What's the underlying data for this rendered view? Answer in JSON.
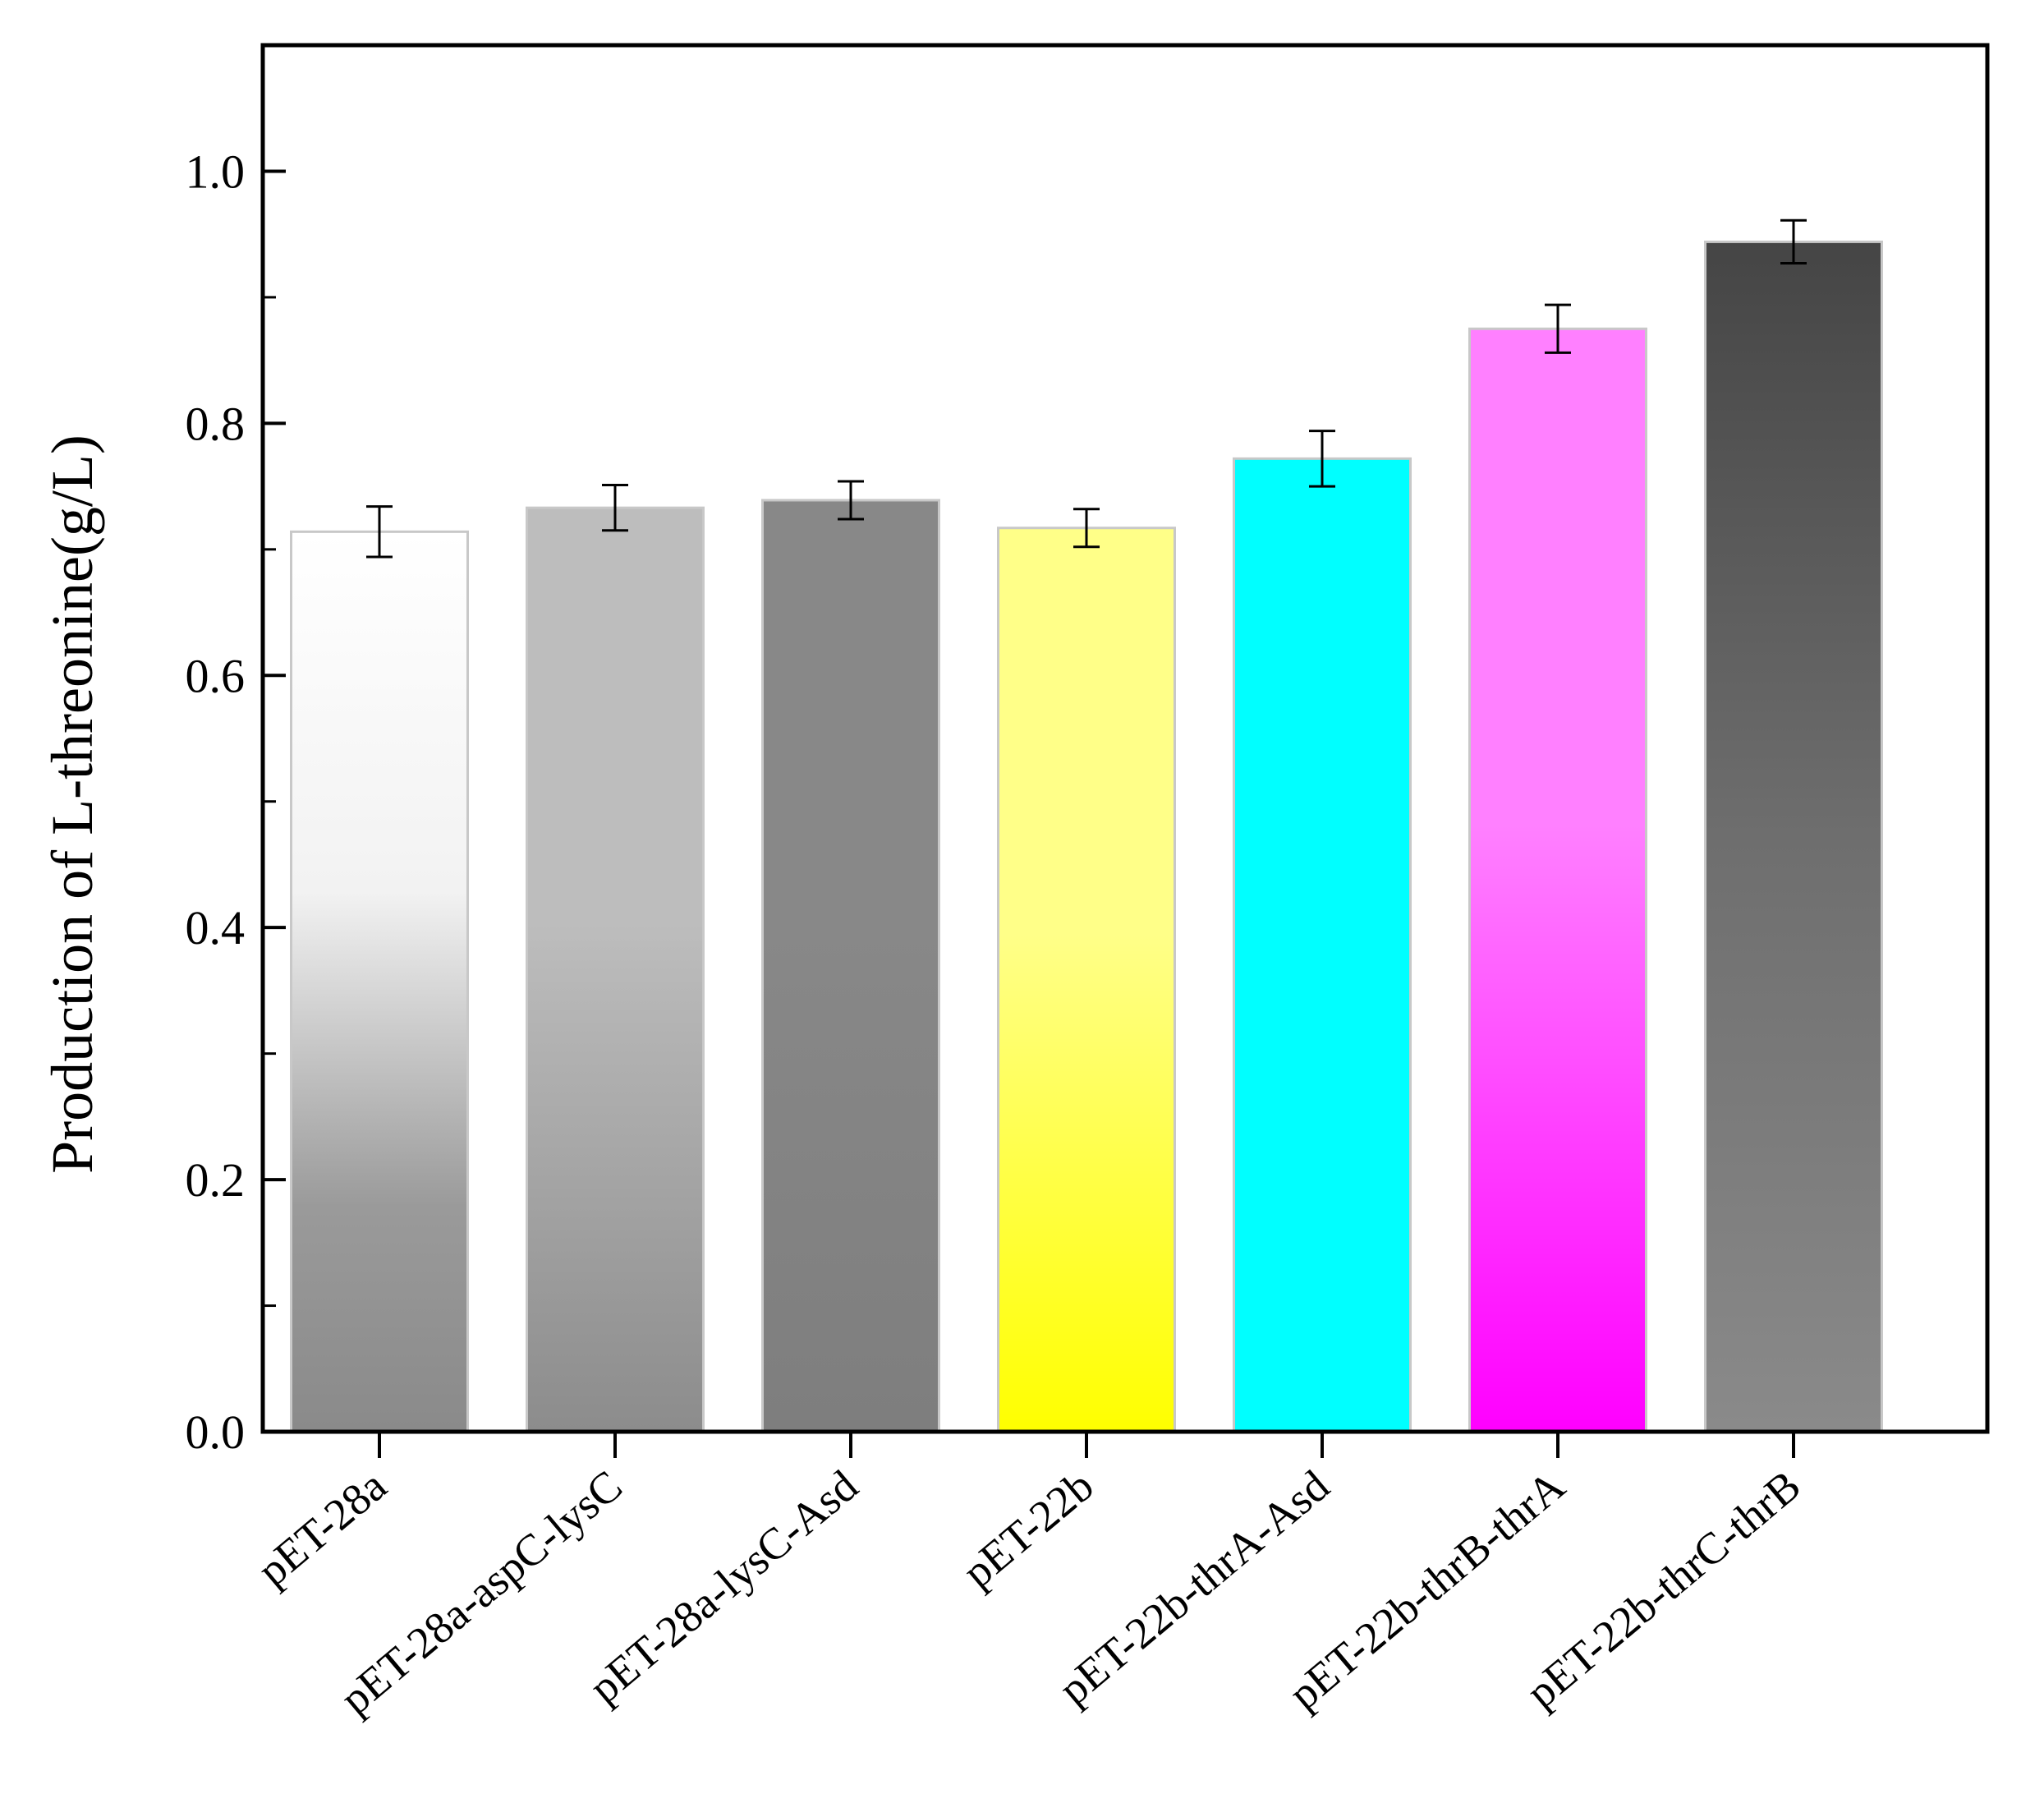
{
  "chart_data": {
    "type": "bar",
    "categories": [
      "pET-28a",
      "pET-28a-aspC-lysC",
      "pET-28a-lysC-Asd",
      "pET-22b",
      "pET-22b-thrA-Asd",
      "pET-22b-thrB-thrA",
      "pET-22b-thrC-thrB"
    ],
    "values": [
      0.714,
      0.733,
      0.739,
      0.717,
      0.772,
      0.875,
      0.944
    ],
    "errors": [
      0.02,
      0.018,
      0.015,
      0.015,
      0.022,
      0.019,
      0.017
    ],
    "colors": [
      [
        "#ffffff",
        "#8a8a8a"
      ],
      [
        "#bdbdbd",
        "#8c8c8c"
      ],
      [
        "#888888",
        "#7e7e7e"
      ],
      [
        "#ffff88",
        "#ffff00"
      ],
      [
        "#00ffff",
        "#00ffff"
      ],
      [
        "#ff80ff",
        "#ff00ff"
      ],
      [
        "#4a4a4a",
        "#8a8a8a"
      ]
    ],
    "title": "",
    "xlabel": "",
    "ylabel": "Production of L-threonine(g/L)",
    "ylim": [
      0,
      1.1
    ],
    "yticks": [
      "0.0",
      "0.2",
      "0.4",
      "0.6",
      "0.8",
      "1.0"
    ],
    "ytick_values": [
      0,
      0.2,
      0.4,
      0.6,
      0.8,
      1.0
    ],
    "grid": false,
    "legend": "none"
  }
}
